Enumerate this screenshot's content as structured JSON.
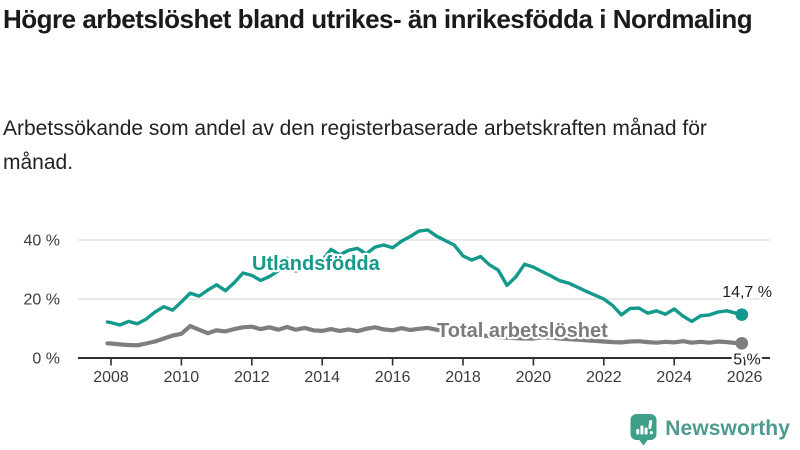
{
  "title": "Högre arbetslöshet bland utrikes- än inrikesfödda i Nordmaling",
  "subtitle": "Arbetssökande som andel av den registerbaserade arbetskraften månad för månad.",
  "footer": {
    "brand": "Newsworthy",
    "icon": "newsworthy-chart-bubble-icon"
  },
  "colors": {
    "accent_teal": "#149a8c",
    "series_gray": "#7e7e7e",
    "title_text": "#1a1a1a",
    "axis_text": "#3c3c3c",
    "gridline": "#dcdcdc",
    "axis_line": "#2f2f2f",
    "value_label": "#1f1f1f",
    "brand_text": "#4f9a8f",
    "brand_icon": "#3f9f8b"
  },
  "chart_data": {
    "type": "line",
    "title": "Högre arbetslöshet bland utrikes- än inrikesfödda i Nordmaling",
    "xlabel": "",
    "ylabel": "Arbetssökande som andel av den registerbaserade arbetskraften",
    "xlim": [
      2007.8,
      2026.3
    ],
    "ylim": [
      0,
      45
    ],
    "grid": "horizontal",
    "legend_position": "inline-labels",
    "y_ticks": [
      {
        "value": 0,
        "label": "0 %"
      },
      {
        "value": 20,
        "label": "20 %"
      },
      {
        "value": 40,
        "label": "40 %"
      }
    ],
    "x_ticks": [
      {
        "value": 2008,
        "label": "2008"
      },
      {
        "value": 2010,
        "label": "2010"
      },
      {
        "value": 2012,
        "label": "2012"
      },
      {
        "value": 2014,
        "label": "2014"
      },
      {
        "value": 2016,
        "label": "2016"
      },
      {
        "value": 2018,
        "label": "2018"
      },
      {
        "value": 2020,
        "label": "2020"
      },
      {
        "value": 2022,
        "label": "2022"
      },
      {
        "value": 2024,
        "label": "2024"
      },
      {
        "value": 2026,
        "label": "2026"
      }
    ],
    "series": [
      {
        "name": "Utlandsfödda",
        "color": "#149a8c",
        "end_value": 14.7,
        "end_label": "14,7 %",
        "x": [
          2007.9,
          2008.0,
          2008.25,
          2008.5,
          2008.75,
          2009.0,
          2009.25,
          2009.5,
          2009.75,
          2010.0,
          2010.25,
          2010.5,
          2010.75,
          2011.0,
          2011.25,
          2011.5,
          2011.75,
          2012.0,
          2012.25,
          2012.5,
          2012.75,
          2013.0,
          2013.25,
          2013.5,
          2013.75,
          2014.0,
          2014.25,
          2014.5,
          2014.75,
          2015.0,
          2015.25,
          2015.5,
          2015.75,
          2016.0,
          2016.25,
          2016.5,
          2016.75,
          2017.0,
          2017.25,
          2017.5,
          2017.75,
          2018.0,
          2018.25,
          2018.5,
          2018.75,
          2019.0,
          2019.25,
          2019.5,
          2019.75,
          2020.0,
          2020.25,
          2020.5,
          2020.75,
          2021.0,
          2021.25,
          2021.5,
          2021.75,
          2022.0,
          2022.25,
          2022.5,
          2022.75,
          2023.0,
          2023.25,
          2023.5,
          2023.75,
          2024.0,
          2024.25,
          2024.5,
          2024.75,
          2025.0,
          2025.25,
          2025.5,
          2025.75,
          2025.92
        ],
        "values": [
          12.2,
          12.0,
          11.2,
          12.4,
          11.6,
          13.2,
          15.6,
          17.4,
          16.2,
          19.0,
          22.0,
          21.0,
          23.0,
          24.8,
          22.8,
          25.5,
          28.8,
          28.0,
          26.3,
          27.6,
          29.5,
          33.8,
          29.5,
          30.5,
          32.0,
          33.0,
          36.8,
          35.0,
          36.5,
          37.2,
          35.3,
          37.6,
          38.3,
          37.4,
          39.6,
          41.2,
          43.0,
          43.4,
          41.3,
          39.8,
          38.3,
          34.6,
          33.2,
          34.4,
          31.6,
          29.8,
          24.6,
          27.5,
          31.8,
          30.8,
          29.3,
          27.8,
          26.2,
          25.4,
          24.0,
          22.6,
          21.3,
          20.0,
          17.8,
          14.6,
          16.8,
          16.9,
          15.2,
          16.0,
          14.8,
          16.6,
          14.2,
          12.4,
          14.3,
          14.6,
          15.6,
          16.0,
          15.2,
          14.7
        ]
      },
      {
        "name": "Total arbetslöshet",
        "color": "#7e7e7e",
        "end_value": 5,
        "end_label": "5 %",
        "x": [
          2007.9,
          2008.0,
          2008.25,
          2008.5,
          2008.75,
          2009.0,
          2009.25,
          2009.5,
          2009.75,
          2010.0,
          2010.25,
          2010.5,
          2010.75,
          2011.0,
          2011.25,
          2011.5,
          2011.75,
          2012.0,
          2012.25,
          2012.5,
          2012.75,
          2013.0,
          2013.25,
          2013.5,
          2013.75,
          2014.0,
          2014.25,
          2014.5,
          2014.75,
          2015.0,
          2015.25,
          2015.5,
          2015.75,
          2016.0,
          2016.25,
          2016.5,
          2016.75,
          2017.0,
          2017.25,
          2017.5,
          2017.75,
          2018.0,
          2018.25,
          2018.5,
          2018.75,
          2019.0,
          2019.25,
          2019.5,
          2019.75,
          2020.0,
          2020.25,
          2020.5,
          2020.75,
          2021.0,
          2021.25,
          2021.5,
          2021.75,
          2022.0,
          2022.25,
          2022.5,
          2022.75,
          2023.0,
          2023.25,
          2023.5,
          2023.75,
          2024.0,
          2024.25,
          2024.5,
          2024.75,
          2025.0,
          2025.25,
          2025.5,
          2025.75,
          2025.92
        ],
        "values": [
          5.0,
          4.9,
          4.6,
          4.4,
          4.3,
          4.9,
          5.6,
          6.6,
          7.6,
          8.2,
          10.8,
          9.6,
          8.4,
          9.4,
          9.0,
          9.8,
          10.4,
          10.6,
          9.8,
          10.4,
          9.6,
          10.5,
          9.6,
          10.2,
          9.4,
          9.2,
          9.8,
          9.2,
          9.7,
          9.1,
          9.9,
          10.4,
          9.7,
          9.4,
          10.1,
          9.5,
          9.9,
          10.2,
          9.6,
          9.1,
          8.7,
          8.3,
          8.0,
          7.7,
          7.4,
          7.1,
          6.9,
          6.7,
          6.6,
          6.6,
          7.1,
          6.9,
          6.6,
          6.4,
          6.2,
          6.0,
          5.8,
          5.6,
          5.4,
          5.3,
          5.6,
          5.7,
          5.4,
          5.2,
          5.5,
          5.3,
          5.7,
          5.2,
          5.5,
          5.2,
          5.6,
          5.4,
          5.1,
          5.0
        ]
      }
    ]
  }
}
